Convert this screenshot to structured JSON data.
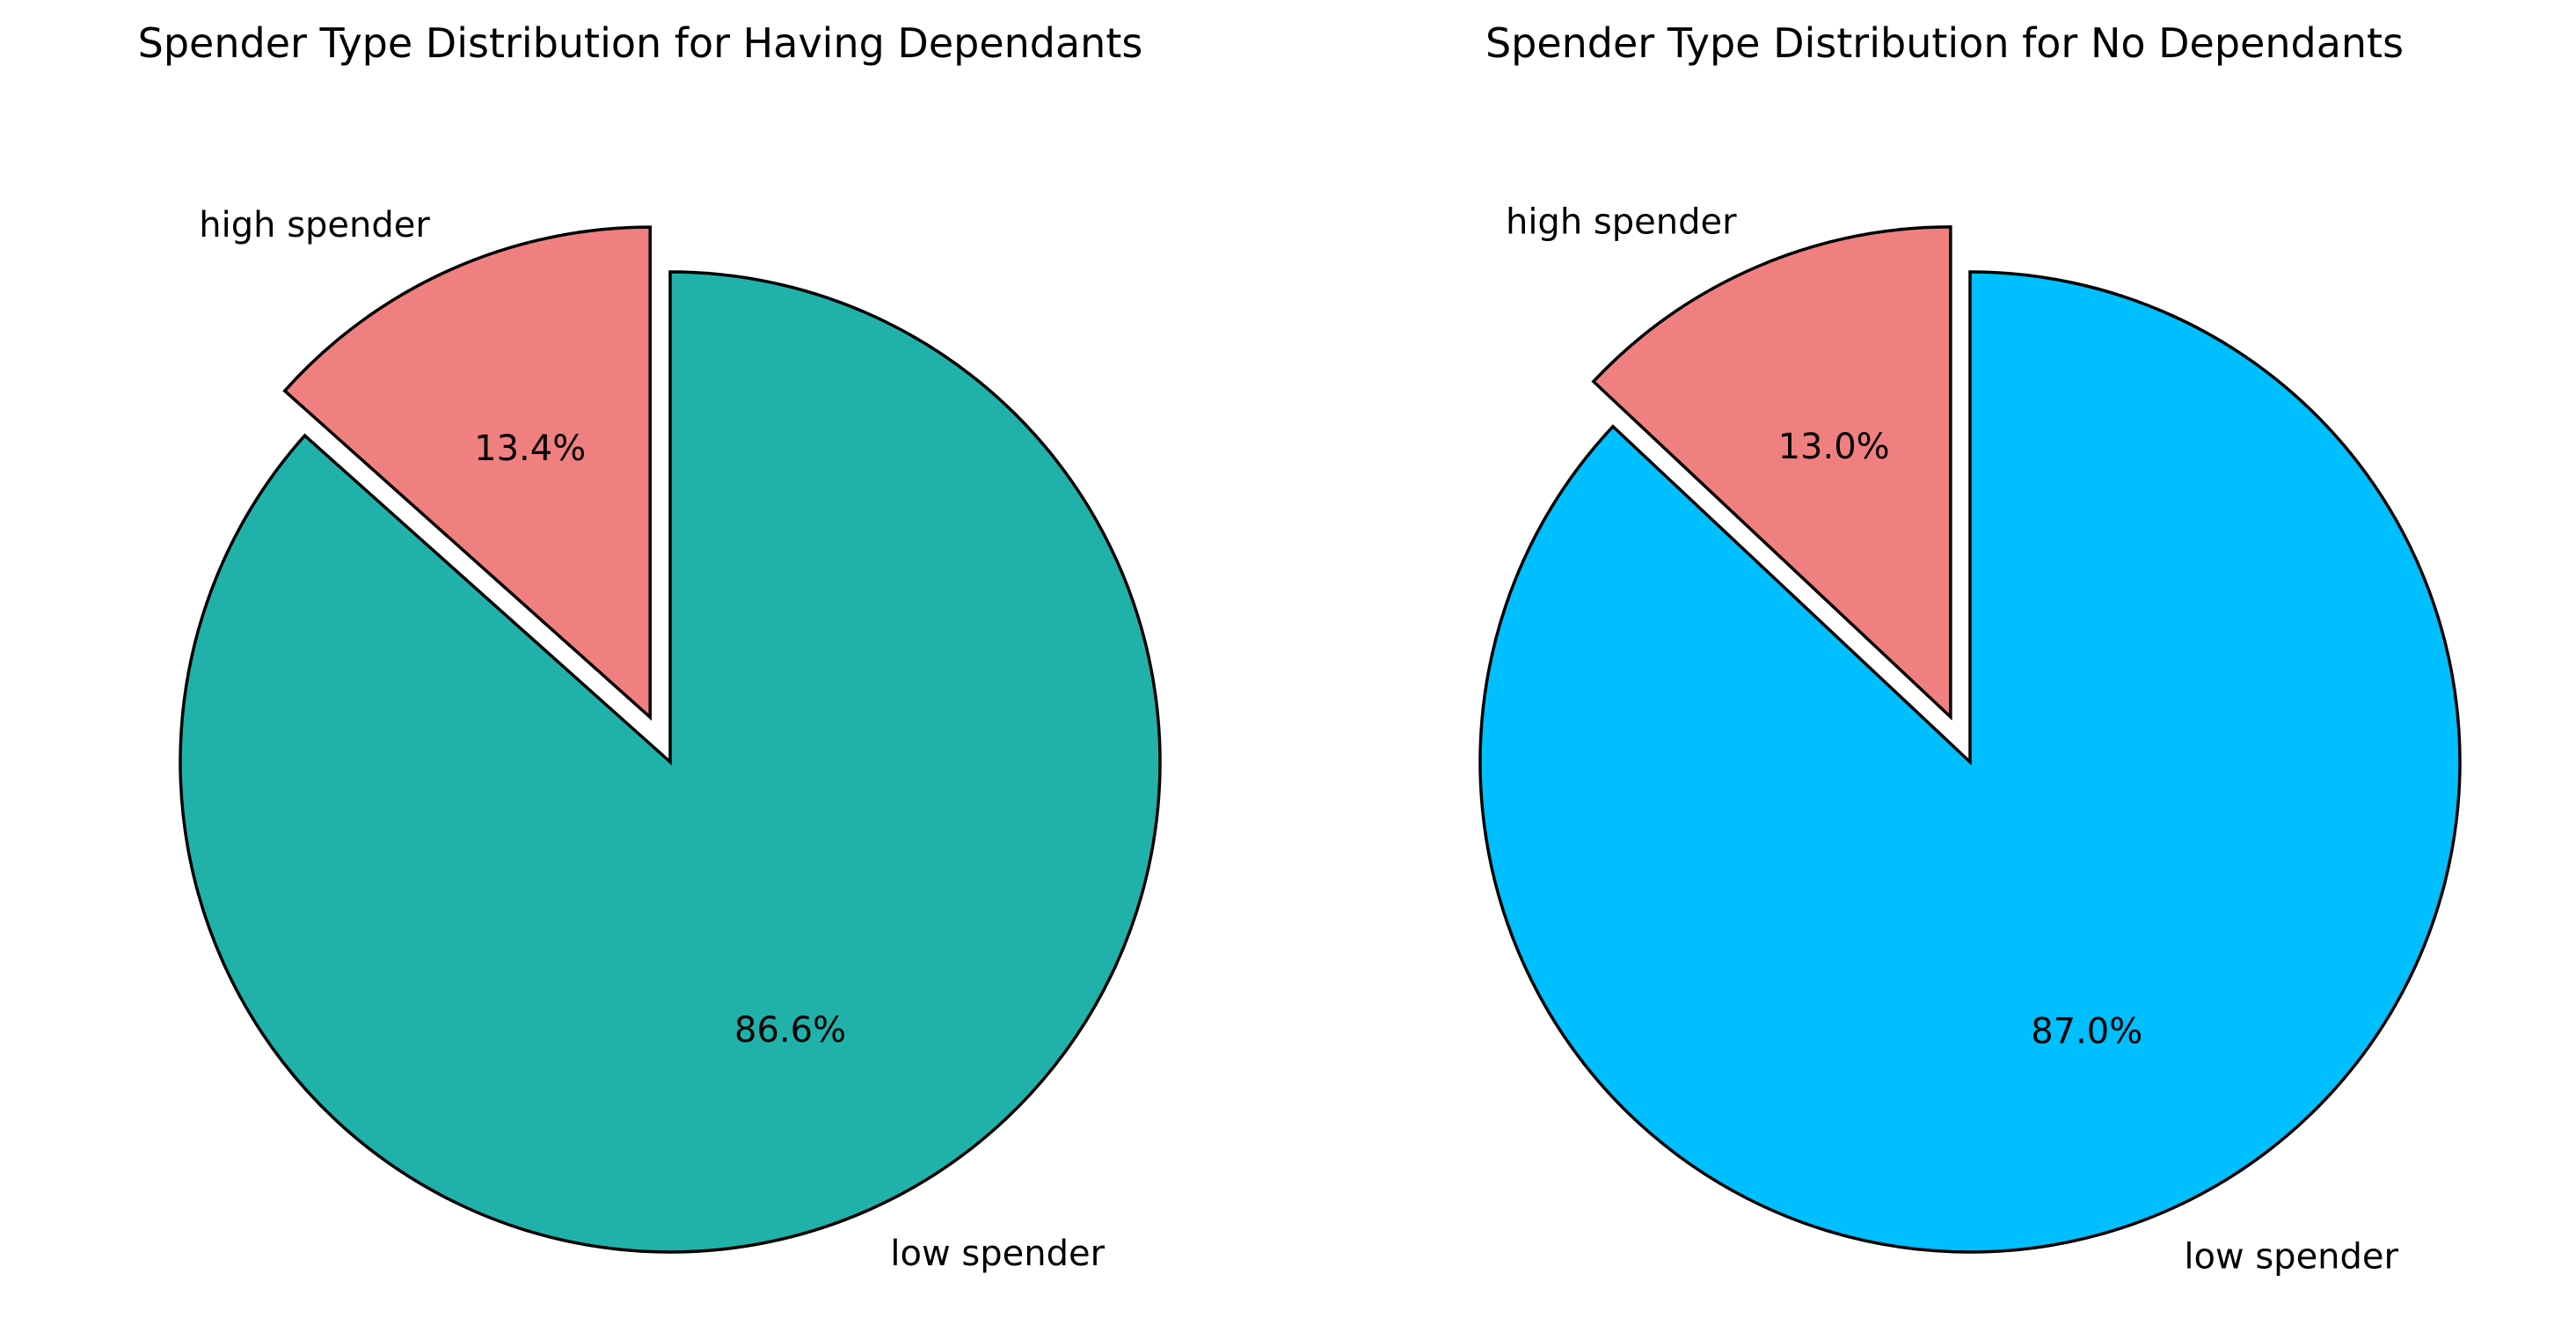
{
  "chart_data": [
    {
      "type": "pie",
      "title": "Spender Type Distribution for Having Dependants",
      "labels": [
        "high spender",
        "low spender"
      ],
      "values": [
        13.4,
        86.6
      ],
      "value_labels": [
        "13.4%",
        "86.6%"
      ],
      "colors": [
        "#F08080",
        "#20B2AA"
      ],
      "exploded": [
        true,
        false
      ]
    },
    {
      "type": "pie",
      "title": "Spender Type Distribution for No Dependants",
      "labels": [
        "high spender",
        "low spender"
      ],
      "values": [
        13.0,
        87.0
      ],
      "value_labels": [
        "13.0%",
        "87.0%"
      ],
      "colors": [
        "#F08080",
        "#00BFFF"
      ],
      "exploded": [
        true,
        false
      ]
    }
  ]
}
